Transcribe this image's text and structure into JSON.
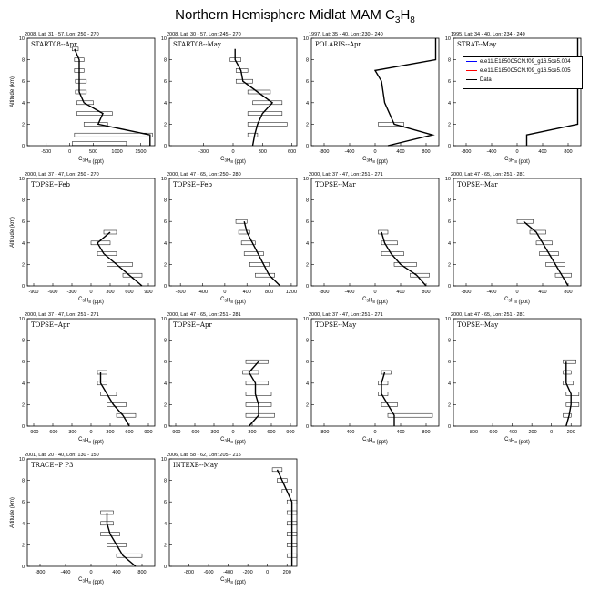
{
  "title_main": "Northern Hemisphere Midlat MAM C",
  "title_sub1": "3",
  "title_mid": "H",
  "title_sub2": "8",
  "legend": [
    {
      "name": "e.e11.E1850C5CN.f09_g16.5ce5.004",
      "color": "#0000ff"
    },
    {
      "name": "e.e11.E1850C5CN.f09_g16.5ce5.005",
      "color": "#ff0000"
    },
    {
      "name": "Data",
      "color": "#000000"
    }
  ],
  "chart_data": [
    {
      "type": "line",
      "header": "2008, Lat: 31 - 57, Lon: 250 - 270",
      "label": "START08--Apr",
      "xlabel": "C3H8 (ppt)",
      "ylabel": "Altitude (km)",
      "xlim": [
        -900,
        1800
      ],
      "ylim": [
        0,
        10
      ],
      "xticks": [
        -500,
        0,
        500,
        1000,
        1500
      ],
      "yticks": [
        0,
        2,
        4,
        6,
        8,
        10
      ],
      "profile": [
        [
          1700,
          0
        ],
        [
          1700,
          1
        ],
        [
          600,
          2
        ],
        [
          700,
          3
        ],
        [
          300,
          4
        ],
        [
          200,
          5
        ],
        [
          200,
          6
        ],
        [
          200,
          7
        ],
        [
          200,
          8
        ],
        [
          100,
          9
        ]
      ],
      "ranges": [
        [
          50,
          1200,
          0.2
        ],
        [
          100,
          1750,
          1
        ],
        [
          300,
          800,
          2
        ],
        [
          150,
          900,
          3
        ],
        [
          150,
          500,
          4
        ],
        [
          120,
          350,
          5
        ],
        [
          120,
          350,
          6
        ],
        [
          100,
          300,
          7
        ],
        [
          100,
          300,
          8
        ],
        [
          50,
          180,
          9
        ]
      ]
    },
    {
      "type": "line",
      "header": "2008, Lat: 30 - 57, Lon: 245 - 270",
      "label": "START08--May",
      "xlabel": "C3H8 (ppt)",
      "ylabel": "",
      "xlim": [
        -650,
        650
      ],
      "ylim": [
        0,
        10
      ],
      "xticks": [
        -300,
        0,
        300,
        600
      ],
      "yticks": [
        0,
        2,
        4,
        6,
        8,
        10
      ],
      "profile": [
        [
          200,
          0
        ],
        [
          220,
          1
        ],
        [
          250,
          2
        ],
        [
          300,
          3
        ],
        [
          400,
          4
        ],
        [
          250,
          5
        ],
        [
          100,
          6
        ],
        [
          80,
          7
        ],
        [
          20,
          8
        ],
        [
          20,
          9
        ]
      ],
      "ranges": [
        [
          150,
          250,
          1
        ],
        [
          150,
          550,
          2
        ],
        [
          150,
          500,
          3
        ],
        [
          200,
          500,
          4
        ],
        [
          150,
          380,
          5
        ],
        [
          30,
          200,
          6
        ],
        [
          30,
          150,
          7
        ],
        [
          -30,
          80,
          8
        ]
      ]
    },
    {
      "type": "line",
      "header": "1997, Lat: 35 - 40, Lon: 230 - 240",
      "label": "POLARIS--Apr",
      "xlabel": "C3H8 (ppt)",
      "ylabel": "",
      "xlim": [
        -1000,
        1000
      ],
      "ylim": [
        0,
        10
      ],
      "xticks": [
        -800,
        -400,
        0,
        400,
        800
      ],
      "yticks": [
        0,
        2,
        4,
        6,
        8,
        10
      ],
      "profile": [
        [
          200,
          0
        ],
        [
          900,
          1
        ],
        [
          300,
          2
        ],
        [
          150,
          4
        ],
        [
          100,
          6
        ],
        [
          0,
          7
        ],
        [
          950,
          8
        ],
        [
          950,
          10
        ]
      ],
      "ranges": [
        [
          50,
          450,
          2
        ]
      ]
    },
    {
      "type": "line",
      "header": "1995, Lat: 34 - 40, Lon: 234 - 240",
      "label": "STRAT--May",
      "xlabel": "C3H8 (ppt)",
      "ylabel": "",
      "xlim": [
        -1000,
        1000
      ],
      "ylim": [
        0,
        10
      ],
      "xticks": [
        -800,
        -400,
        0,
        400,
        800
      ],
      "yticks": [
        0,
        2,
        4,
        6,
        8,
        10
      ],
      "profile": [
        [
          150,
          0
        ],
        [
          150,
          1
        ],
        [
          950,
          2
        ],
        [
          950,
          10
        ]
      ],
      "ranges": []
    },
    {
      "type": "line",
      "header": "2000, Lat: 37 - 47, Lon: 250 - 270",
      "label": "TOPSE--Feb",
      "xlabel": "C3H8 (ppt)",
      "ylabel": "Altitude (km)",
      "xlim": [
        -1000,
        1000
      ],
      "ylim": [
        0,
        10
      ],
      "xticks": [
        -900,
        -600,
        -300,
        0,
        300,
        600,
        900
      ],
      "yticks": [
        0,
        2,
        4,
        6,
        8,
        10
      ],
      "profile": [
        [
          800,
          0
        ],
        [
          600,
          1
        ],
        [
          400,
          2
        ],
        [
          200,
          3
        ],
        [
          100,
          4
        ],
        [
          300,
          5
        ]
      ],
      "ranges": [
        [
          500,
          800,
          1
        ],
        [
          250,
          650,
          2
        ],
        [
          100,
          400,
          3
        ],
        [
          0,
          300,
          4
        ],
        [
          200,
          400,
          5
        ]
      ]
    },
    {
      "type": "line",
      "header": "2000, Lat: 47 - 65, Lon: 250 - 280",
      "label": "TOPSE--Feb",
      "xlabel": "C3H8 (ppt)",
      "ylabel": "",
      "xlim": [
        -1000,
        1300
      ],
      "ylim": [
        0,
        10
      ],
      "xticks": [
        -800,
        -400,
        0,
        400,
        800,
        1200
      ],
      "yticks": [
        0,
        2,
        4,
        6,
        8,
        10
      ],
      "profile": [
        [
          1000,
          0
        ],
        [
          800,
          1
        ],
        [
          700,
          2
        ],
        [
          600,
          3
        ],
        [
          500,
          4
        ],
        [
          400,
          5
        ],
        [
          350,
          6
        ]
      ],
      "ranges": [
        [
          550,
          900,
          1
        ],
        [
          450,
          800,
          2
        ],
        [
          350,
          700,
          3
        ],
        [
          300,
          550,
          4
        ],
        [
          250,
          450,
          5
        ],
        [
          200,
          400,
          6
        ]
      ]
    },
    {
      "type": "line",
      "header": "2000, Lat: 37 - 47, Lon: 251 - 271",
      "label": "TOPSE--Mar",
      "xlabel": "C3H8 (ppt)",
      "ylabel": "",
      "xlim": [
        -1000,
        1000
      ],
      "ylim": [
        0,
        10
      ],
      "xticks": [
        -800,
        -400,
        0,
        400,
        800
      ],
      "yticks": [
        0,
        2,
        4,
        6,
        8,
        10
      ],
      "profile": [
        [
          800,
          0
        ],
        [
          650,
          1
        ],
        [
          400,
          2
        ],
        [
          250,
          3
        ],
        [
          150,
          4
        ],
        [
          100,
          5
        ]
      ],
      "ranges": [
        [
          550,
          850,
          1
        ],
        [
          300,
          650,
          2
        ],
        [
          100,
          450,
          3
        ],
        [
          100,
          350,
          4
        ],
        [
          50,
          200,
          5
        ]
      ]
    },
    {
      "type": "line",
      "header": "2000, Lat: 47 - 65, Lon: 251 - 281",
      "label": "TOPSE--Mar",
      "xlabel": "C3H8 (ppt)",
      "ylabel": "",
      "xlim": [
        -1000,
        1000
      ],
      "ylim": [
        0,
        10
      ],
      "xticks": [
        -800,
        -400,
        0,
        400,
        800
      ],
      "yticks": [
        0,
        2,
        4,
        6,
        8,
        10
      ],
      "profile": [
        [
          800,
          0
        ],
        [
          700,
          1
        ],
        [
          600,
          2
        ],
        [
          500,
          3
        ],
        [
          400,
          4
        ],
        [
          300,
          5
        ],
        [
          100,
          6
        ]
      ],
      "ranges": [
        [
          600,
          850,
          1
        ],
        [
          450,
          750,
          2
        ],
        [
          350,
          650,
          3
        ],
        [
          300,
          550,
          4
        ],
        [
          200,
          450,
          5
        ],
        [
          0,
          250,
          6
        ]
      ]
    },
    {
      "type": "line",
      "header": "2000, Lat: 37 - 47, Lon: 251 - 271",
      "label": "TOPSE--Apr",
      "xlabel": "C3H8 (ppt)",
      "ylabel": "",
      "xlim": [
        -1000,
        1000
      ],
      "ylim": [
        0,
        10
      ],
      "xticks": [
        -900,
        -600,
        -300,
        0,
        300,
        600,
        900
      ],
      "yticks": [
        0,
        2,
        4,
        6,
        8,
        10
      ],
      "profile": [
        [
          600,
          0
        ],
        [
          500,
          1
        ],
        [
          350,
          2
        ],
        [
          250,
          3
        ],
        [
          150,
          4
        ],
        [
          150,
          5
        ]
      ],
      "ranges": [
        [
          400,
          700,
          1
        ],
        [
          250,
          550,
          2
        ],
        [
          150,
          400,
          3
        ],
        [
          100,
          250,
          4
        ],
        [
          100,
          250,
          5
        ]
      ]
    },
    {
      "type": "line",
      "header": "2000, Lat: 47 - 65, Lon: 251 - 281",
      "label": "TOPSE--Apr",
      "xlabel": "C3H8 (ppt)",
      "ylabel": "",
      "xlim": [
        -1000,
        1000
      ],
      "ylim": [
        0,
        10
      ],
      "xticks": [
        -900,
        -600,
        -300,
        0,
        300,
        600,
        900
      ],
      "yticks": [
        0,
        2,
        4,
        6,
        8,
        10
      ],
      "profile": [
        [
          250,
          0
        ],
        [
          400,
          1
        ],
        [
          400,
          2
        ],
        [
          350,
          3
        ],
        [
          350,
          4
        ],
        [
          250,
          5
        ],
        [
          400,
          6
        ]
      ],
      "ranges": [
        [
          200,
          650,
          1
        ],
        [
          200,
          600,
          2
        ],
        [
          200,
          600,
          3
        ],
        [
          200,
          550,
          4
        ],
        [
          150,
          400,
          5
        ],
        [
          200,
          550,
          6
        ]
      ]
    },
    {
      "type": "line",
      "header": "2000, Lat: 37 - 47, Lon: 251 - 271",
      "label": "TOPSE--May",
      "xlabel": "C3H8 (ppt)",
      "ylabel": "",
      "xlim": [
        -1000,
        1000
      ],
      "ylim": [
        0,
        10
      ],
      "xticks": [
        -800,
        -400,
        0,
        400,
        800
      ],
      "yticks": [
        0,
        2,
        4,
        6,
        8,
        10
      ],
      "profile": [
        [
          300,
          0
        ],
        [
          300,
          1
        ],
        [
          200,
          2
        ],
        [
          100,
          3
        ],
        [
          100,
          4
        ],
        [
          150,
          5
        ]
      ],
      "ranges": [
        [
          200,
          900,
          1
        ],
        [
          100,
          350,
          2
        ],
        [
          50,
          200,
          3
        ],
        [
          50,
          200,
          4
        ],
        [
          100,
          250,
          5
        ]
      ]
    },
    {
      "type": "line",
      "header": "2000, Lat: 47 - 65, Lon: 251 - 281",
      "label": "TOPSE--May",
      "xlabel": "C3H8 (ppt)",
      "ylabel": "",
      "xlim": [
        -1000,
        300
      ],
      "ylim": [
        0,
        10
      ],
      "xticks": [
        -800,
        -600,
        -400,
        -200,
        0,
        200
      ],
      "yticks": [
        0,
        2,
        4,
        6,
        8,
        10
      ],
      "profile": [
        [
          150,
          0
        ],
        [
          180,
          1
        ],
        [
          200,
          2
        ],
        [
          200,
          3
        ],
        [
          150,
          4
        ],
        [
          150,
          5
        ],
        [
          150,
          6
        ]
      ],
      "ranges": [
        [
          120,
          200,
          1
        ],
        [
          150,
          280,
          2
        ],
        [
          150,
          280,
          3
        ],
        [
          120,
          220,
          4
        ],
        [
          120,
          200,
          5
        ],
        [
          120,
          250,
          6
        ]
      ]
    },
    {
      "type": "line",
      "header": "2001, Lat: 20 - 40, Lon: 130 - 150",
      "label": "TRACE--P P3",
      "xlabel": "C3H8 (ppt)",
      "ylabel": "Altitude (km)",
      "xlim": [
        -1000,
        1000
      ],
      "ylim": [
        0,
        10
      ],
      "xticks": [
        -800,
        -400,
        0,
        400,
        800
      ],
      "yticks": [
        0,
        2,
        4,
        6,
        8,
        10
      ],
      "profile": [
        [
          700,
          0
        ],
        [
          500,
          1
        ],
        [
          400,
          2
        ],
        [
          300,
          3
        ],
        [
          250,
          4
        ],
        [
          250,
          5
        ]
      ],
      "ranges": [
        [
          400,
          800,
          1
        ],
        [
          250,
          550,
          2
        ],
        [
          150,
          450,
          3
        ],
        [
          150,
          350,
          4
        ],
        [
          150,
          350,
          5
        ]
      ]
    },
    {
      "type": "line",
      "header": "2006, Lat: 58 - 62, Lon: 205 - 215",
      "label": "INTEXB--May",
      "xlabel": "C3H8 (ppt)",
      "ylabel": "",
      "xlim": [
        -1000,
        300
      ],
      "ylim": [
        0,
        10
      ],
      "xticks": [
        -800,
        -600,
        -400,
        -200,
        0,
        200
      ],
      "yticks": [
        0,
        2,
        4,
        6,
        8,
        10
      ],
      "profile": [
        [
          250,
          0
        ],
        [
          250,
          1
        ],
        [
          250,
          2
        ],
        [
          250,
          3
        ],
        [
          250,
          4
        ],
        [
          250,
          5
        ],
        [
          250,
          6
        ],
        [
          200,
          7
        ],
        [
          150,
          8
        ],
        [
          100,
          9
        ]
      ],
      "ranges": [
        [
          200,
          300,
          1
        ],
        [
          200,
          300,
          2
        ],
        [
          200,
          300,
          3
        ],
        [
          200,
          300,
          4
        ],
        [
          200,
          300,
          5
        ],
        [
          200,
          300,
          6
        ],
        [
          150,
          250,
          7
        ],
        [
          100,
          200,
          8
        ],
        [
          50,
          150,
          9
        ]
      ]
    }
  ]
}
